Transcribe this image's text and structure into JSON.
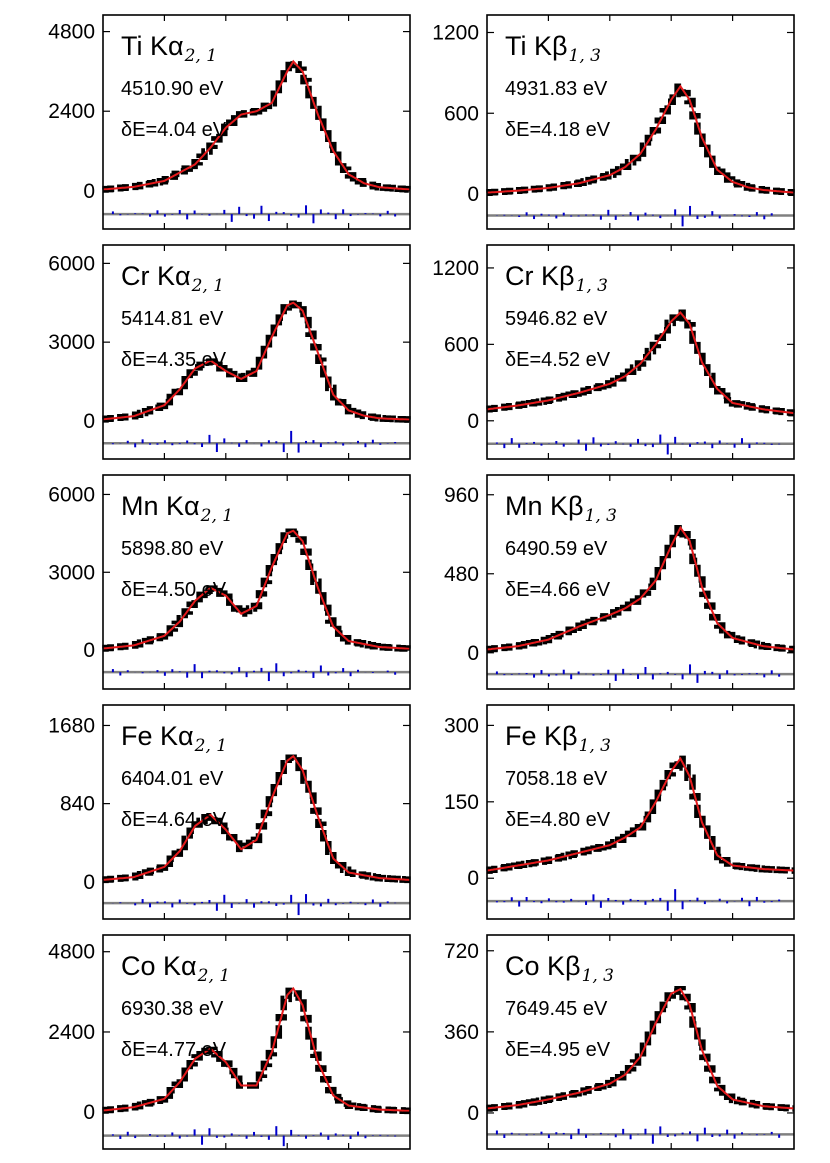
{
  "colors": {
    "data": "#000000",
    "fit": "#e41a1c",
    "residual": "#0000cc",
    "baseline": "#808080",
    "frame": "#000000"
  },
  "chart_data": [
    {
      "type": "line",
      "element": "Ti",
      "line": "Kα",
      "subscript": "2, 1",
      "label": "Ti Kα",
      "energy_text": "4510.90 eV",
      "width_text": "δE=4.04 eV",
      "energy": 4510.9,
      "width": 4.04,
      "yticks": [
        0,
        2400,
        4800
      ],
      "ytick_labels": [
        "0",
        "2400",
        "4800"
      ],
      "ylim": [
        -1150,
        5300
      ],
      "x": [
        0,
        0.1,
        0.2,
        0.3,
        0.35,
        0.4,
        0.45,
        0.5,
        0.55,
        0.6,
        0.62,
        0.65,
        0.7,
        0.75,
        0.8,
        0.85,
        0.9,
        1.0
      ],
      "y": [
        40,
        120,
        300,
        800,
        1300,
        1900,
        2300,
        2400,
        2650,
        3600,
        3900,
        3600,
        2300,
        1200,
        500,
        230,
        110,
        40
      ],
      "series": [
        {
          "name": "data"
        },
        {
          "name": "fit"
        },
        {
          "name": "residual"
        }
      ],
      "baseline": -700
    },
    {
      "type": "line",
      "element": "Ti",
      "line": "Kβ",
      "subscript": "1, 3",
      "label": "Ti Kβ",
      "energy_text": "4931.83 eV",
      "width_text": "δE=4.18 eV",
      "energy": 4931.83,
      "width": 4.18,
      "yticks": [
        0,
        600,
        1200
      ],
      "ytick_labels": [
        "0",
        "600",
        "1200"
      ],
      "ylim": [
        -260,
        1330
      ],
      "x": [
        0,
        0.1,
        0.2,
        0.3,
        0.4,
        0.45,
        0.5,
        0.55,
        0.6,
        0.63,
        0.66,
        0.7,
        0.75,
        0.8,
        0.85,
        0.9,
        1.0
      ],
      "y": [
        10,
        25,
        45,
        80,
        140,
        200,
        300,
        480,
        700,
        800,
        700,
        420,
        180,
        90,
        50,
        30,
        10
      ],
      "series": [
        {
          "name": "data"
        },
        {
          "name": "fit"
        },
        {
          "name": "residual"
        }
      ],
      "baseline": -160
    },
    {
      "type": "line",
      "element": "Cr",
      "line": "Kα",
      "subscript": "2, 1",
      "label": "Cr Kα",
      "energy_text": "5414.81 eV",
      "width_text": "δE=4.35 eV",
      "energy": 5414.81,
      "width": 4.35,
      "yticks": [
        0,
        3000,
        6000
      ],
      "ytick_labels": [
        "0",
        "3000",
        "6000"
      ],
      "ylim": [
        -1450,
        6700
      ],
      "x": [
        0,
        0.1,
        0.2,
        0.25,
        0.3,
        0.35,
        0.4,
        0.45,
        0.5,
        0.55,
        0.6,
        0.62,
        0.65,
        0.7,
        0.75,
        0.8,
        0.85,
        0.9,
        1.0
      ],
      "y": [
        60,
        180,
        600,
        1200,
        2000,
        2300,
        1900,
        1600,
        1900,
        3200,
        4400,
        4500,
        4200,
        2600,
        1000,
        400,
        200,
        100,
        50
      ],
      "series": [
        {
          "name": "data"
        },
        {
          "name": "fit"
        },
        {
          "name": "residual"
        }
      ],
      "baseline": -850
    },
    {
      "type": "line",
      "element": "Cr",
      "line": "Kβ",
      "subscript": "1, 3",
      "label": "Cr Kβ",
      "energy_text": "5946.82 eV",
      "width_text": "δE=4.52 eV",
      "energy": 5946.82,
      "width": 4.52,
      "yticks": [
        0,
        600,
        1200
      ],
      "ytick_labels": [
        "0",
        "600",
        "1200"
      ],
      "ylim": [
        -300,
        1380
      ],
      "x": [
        0,
        0.1,
        0.2,
        0.3,
        0.4,
        0.45,
        0.5,
        0.55,
        0.6,
        0.63,
        0.66,
        0.7,
        0.75,
        0.8,
        0.9,
        1.0
      ],
      "y": [
        90,
        120,
        160,
        220,
        290,
        350,
        450,
        600,
        780,
        850,
        760,
        460,
        250,
        140,
        90,
        60
      ],
      "series": [
        {
          "name": "data"
        },
        {
          "name": "fit"
        },
        {
          "name": "residual"
        }
      ],
      "baseline": -180
    },
    {
      "type": "line",
      "element": "Mn",
      "line": "Kα",
      "subscript": "2, 1",
      "label": "Mn Kα",
      "energy_text": "5898.80 eV",
      "width_text": "δE=4.50 eV",
      "energy": 5898.8,
      "width": 4.5,
      "yticks": [
        0,
        3000,
        6000
      ],
      "ytick_labels": [
        "0",
        "3000",
        "6000"
      ],
      "ylim": [
        -1500,
        6750
      ],
      "x": [
        0,
        0.1,
        0.2,
        0.25,
        0.3,
        0.35,
        0.4,
        0.45,
        0.5,
        0.55,
        0.6,
        0.62,
        0.65,
        0.7,
        0.75,
        0.8,
        0.9,
        1.0
      ],
      "y": [
        60,
        180,
        550,
        1100,
        1900,
        2400,
        2100,
        1400,
        1700,
        3200,
        4500,
        4600,
        4200,
        2400,
        900,
        350,
        120,
        50
      ],
      "series": [
        {
          "name": "data"
        },
        {
          "name": "fit"
        },
        {
          "name": "residual"
        }
      ],
      "baseline": -850
    },
    {
      "type": "line",
      "element": "Mn",
      "line": "Kβ",
      "subscript": "1, 3",
      "label": "Mn Kβ",
      "energy_text": "6490.59 eV",
      "width_text": "δE=4.66 eV",
      "energy": 6490.59,
      "width": 4.66,
      "yticks": [
        0,
        480,
        960
      ],
      "ytick_labels": [
        "0",
        "480",
        "960"
      ],
      "ylim": [
        -220,
        1080
      ],
      "x": [
        0,
        0.1,
        0.2,
        0.3,
        0.4,
        0.45,
        0.5,
        0.55,
        0.6,
        0.63,
        0.66,
        0.7,
        0.75,
        0.8,
        0.9,
        1.0
      ],
      "y": [
        20,
        40,
        80,
        160,
        230,
        270,
        330,
        440,
        650,
        760,
        680,
        400,
        180,
        90,
        40,
        20
      ],
      "series": [
        {
          "name": "data"
        },
        {
          "name": "fit"
        },
        {
          "name": "residual"
        }
      ],
      "baseline": -130
    },
    {
      "type": "line",
      "element": "Fe",
      "line": "Kα",
      "subscript": "2, 1",
      "label": "Fe Kα",
      "energy_text": "6404.01 eV",
      "width_text": "δE=4.64 eV",
      "energy": 6404.01,
      "width": 4.64,
      "yticks": [
        0,
        840,
        1680
      ],
      "ytick_labels": [
        "0",
        "840",
        "1680"
      ],
      "ylim": [
        -400,
        1900
      ],
      "x": [
        0,
        0.1,
        0.2,
        0.25,
        0.3,
        0.35,
        0.4,
        0.45,
        0.5,
        0.55,
        0.6,
        0.62,
        0.65,
        0.7,
        0.75,
        0.8,
        0.9,
        1.0
      ],
      "y": [
        20,
        50,
        160,
        330,
        600,
        720,
        560,
        350,
        450,
        900,
        1300,
        1350,
        1200,
        700,
        250,
        100,
        40,
        20
      ],
      "series": [
        {
          "name": "data"
        },
        {
          "name": "fit"
        },
        {
          "name": "residual"
        }
      ],
      "baseline": -230
    },
    {
      "type": "line",
      "element": "Fe",
      "line": "Kβ",
      "subscript": "1, 3",
      "label": "Fe Kβ",
      "energy_text": "7058.18 eV",
      "width_text": "δE=4.80 eV",
      "energy": 7058.18,
      "width": 4.8,
      "yticks": [
        0,
        150,
        300
      ],
      "ytick_labels": [
        "0",
        "150",
        "300"
      ],
      "ylim": [
        -80,
        340
      ],
      "x": [
        0,
        0.1,
        0.2,
        0.3,
        0.4,
        0.45,
        0.5,
        0.55,
        0.6,
        0.63,
        0.66,
        0.7,
        0.75,
        0.8,
        0.9,
        1.0
      ],
      "y": [
        15,
        25,
        35,
        50,
        65,
        80,
        100,
        150,
        210,
        235,
        200,
        110,
        45,
        25,
        18,
        15
      ],
      "series": [
        {
          "name": "data"
        },
        {
          "name": "fit"
        },
        {
          "name": "residual"
        }
      ],
      "baseline": -45
    },
    {
      "type": "line",
      "element": "Co",
      "line": "Kα",
      "subscript": "2, 1",
      "label": "Co Kα",
      "energy_text": "6930.38 eV",
      "width_text": "δE=4.77 eV",
      "energy": 6930.38,
      "width": 4.77,
      "yticks": [
        0,
        2400,
        4800
      ],
      "ytick_labels": [
        "0",
        "2400",
        "4800"
      ],
      "ylim": [
        -1100,
        5300
      ],
      "x": [
        0,
        0.1,
        0.2,
        0.25,
        0.3,
        0.35,
        0.4,
        0.45,
        0.5,
        0.55,
        0.6,
        0.62,
        0.65,
        0.7,
        0.75,
        0.8,
        0.9,
        1.0
      ],
      "y": [
        50,
        150,
        400,
        900,
        1600,
        1900,
        1500,
        800,
        800,
        1800,
        3500,
        3700,
        3200,
        1500,
        500,
        200,
        80,
        40
      ],
      "series": [
        {
          "name": "data"
        },
        {
          "name": "fit"
        },
        {
          "name": "residual"
        }
      ],
      "baseline": -700
    },
    {
      "type": "line",
      "element": "Co",
      "line": "Kβ",
      "subscript": "1, 3",
      "label": "Co Kβ",
      "energy_text": "7649.45 eV",
      "width_text": "δE=4.95 eV",
      "energy": 7649.45,
      "width": 4.95,
      "yticks": [
        0,
        360,
        720
      ],
      "ytick_labels": [
        "0",
        "360",
        "720"
      ],
      "ylim": [
        -160,
        790
      ],
      "x": [
        0,
        0.1,
        0.2,
        0.3,
        0.4,
        0.45,
        0.5,
        0.55,
        0.6,
        0.63,
        0.66,
        0.7,
        0.75,
        0.8,
        0.9,
        1.0
      ],
      "y": [
        20,
        35,
        60,
        90,
        130,
        170,
        250,
        400,
        530,
        550,
        480,
        280,
        120,
        60,
        30,
        20
      ],
      "series": [
        {
          "name": "data"
        },
        {
          "name": "fit"
        },
        {
          "name": "residual"
        }
      ],
      "baseline": -95
    }
  ]
}
